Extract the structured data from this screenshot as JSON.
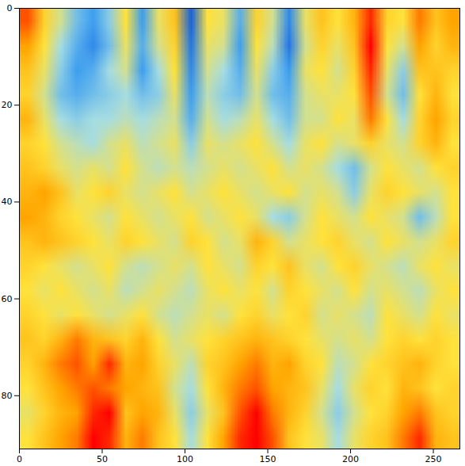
{
  "chart_data": {
    "type": "heatmap",
    "xlim": [
      0,
      266
    ],
    "xticks": [
      0,
      50,
      100,
      150,
      200,
      250
    ],
    "ylim": [
      91,
      0
    ],
    "yticks": [
      0,
      20,
      40,
      60,
      80
    ],
    "zlim": [
      -1,
      1
    ],
    "cells": [
      [
        0.8,
        0.3,
        0.0,
        -0.4,
        -0.6,
        -0.3,
        0.2,
        -0.6,
        0.1,
        0.4,
        -0.9,
        0.2,
        0.1,
        -0.5,
        0.3,
        0.0,
        -0.7,
        0.1,
        0.4,
        0.2,
        0.5,
        0.9,
        0.3,
        0.2,
        0.7,
        0.4,
        0.6
      ],
      [
        0.6,
        0.2,
        -0.2,
        -0.5,
        -0.7,
        -0.4,
        0.1,
        -0.5,
        0.0,
        0.3,
        -0.8,
        0.1,
        0.0,
        -0.6,
        0.2,
        -0.1,
        -0.8,
        0.0,
        0.3,
        0.1,
        0.4,
        1.0,
        0.2,
        0.0,
        0.6,
        0.3,
        0.5
      ],
      [
        0.4,
        0.1,
        -0.3,
        -0.6,
        -0.5,
        -0.2,
        0.0,
        -0.6,
        -0.2,
        0.2,
        -0.7,
        0.0,
        -0.2,
        -0.5,
        0.1,
        -0.3,
        -0.6,
        0.1,
        0.2,
        0.0,
        0.3,
        0.9,
        0.1,
        -0.3,
        0.4,
        0.4,
        0.3
      ],
      [
        0.3,
        0.0,
        -0.4,
        -0.5,
        -0.4,
        -0.3,
        -0.2,
        -0.4,
        -0.3,
        0.1,
        -0.6,
        -0.1,
        -0.3,
        -0.4,
        0.0,
        -0.4,
        -0.5,
        0.0,
        0.1,
        0.1,
        0.2,
        0.8,
        0.0,
        -0.4,
        0.2,
        0.5,
        0.2
      ],
      [
        0.5,
        0.1,
        -0.2,
        -0.3,
        -0.2,
        -0.2,
        -0.1,
        -0.2,
        -0.1,
        0.0,
        -0.5,
        0.0,
        -0.2,
        -0.1,
        0.1,
        -0.2,
        -0.4,
        0.0,
        0.0,
        0.2,
        0.1,
        0.7,
        0.2,
        -0.2,
        0.3,
        0.6,
        0.3
      ],
      [
        0.3,
        0.2,
        0.0,
        -0.1,
        -0.2,
        0.0,
        0.1,
        -0.1,
        0.0,
        0.1,
        -0.3,
        0.1,
        0.0,
        0.1,
        0.2,
        0.0,
        -0.2,
        0.1,
        0.2,
        0.0,
        0.1,
        0.3,
        0.1,
        0.0,
        0.3,
        0.5,
        0.2
      ],
      [
        0.4,
        0.3,
        0.1,
        0.0,
        0.1,
        0.0,
        0.2,
        0.0,
        -0.1,
        0.0,
        -0.1,
        0.0,
        0.1,
        0.0,
        0.1,
        0.2,
        0.0,
        0.1,
        0.0,
        -0.2,
        -0.4,
        0.0,
        0.2,
        0.1,
        0.0,
        0.2,
        0.3
      ],
      [
        0.5,
        0.6,
        0.4,
        0.1,
        0.2,
        0.3,
        0.1,
        0.0,
        0.1,
        0.2,
        0.0,
        0.1,
        0.2,
        0.1,
        0.0,
        0.1,
        0.2,
        0.0,
        0.1,
        0.0,
        -0.3,
        0.1,
        0.3,
        0.2,
        0.1,
        0.0,
        0.2
      ],
      [
        0.6,
        0.5,
        0.3,
        0.2,
        0.1,
        0.0,
        0.2,
        0.1,
        0.0,
        0.1,
        0.2,
        0.0,
        0.1,
        0.2,
        0.1,
        -0.2,
        -0.3,
        0.0,
        0.2,
        0.1,
        0.0,
        0.2,
        0.1,
        0.0,
        -0.4,
        -0.1,
        0.2
      ],
      [
        0.4,
        0.5,
        0.4,
        0.3,
        0.2,
        0.1,
        0.3,
        0.2,
        0.1,
        0.0,
        0.3,
        0.2,
        0.0,
        0.1,
        0.5,
        0.3,
        0.0,
        0.1,
        0.2,
        0.3,
        0.1,
        0.0,
        0.2,
        0.1,
        0.0,
        0.1,
        0.3
      ],
      [
        0.3,
        0.2,
        0.1,
        0.0,
        0.1,
        0.2,
        0.0,
        -0.1,
        0.0,
        0.1,
        0.0,
        0.2,
        0.1,
        0.0,
        0.3,
        0.2,
        0.4,
        0.1,
        0.0,
        0.2,
        0.3,
        0.1,
        0.0,
        -0.1,
        0.1,
        0.2,
        0.1
      ],
      [
        0.2,
        0.1,
        0.2,
        0.1,
        0.0,
        0.1,
        -0.1,
        0.0,
        0.1,
        0.0,
        -0.1,
        0.1,
        0.2,
        0.1,
        0.2,
        0.0,
        0.3,
        0.2,
        0.1,
        0.0,
        0.2,
        0.0,
        0.1,
        0.0,
        -0.1,
        0.1,
        0.2
      ],
      [
        0.3,
        0.2,
        0.1,
        0.2,
        0.1,
        0.0,
        0.1,
        0.2,
        0.0,
        -0.1,
        0.0,
        0.1,
        0.0,
        0.2,
        0.3,
        0.1,
        0.2,
        0.3,
        0.0,
        0.1,
        0.0,
        -0.1,
        0.2,
        0.1,
        0.0,
        0.2,
        0.1
      ],
      [
        0.4,
        0.3,
        0.5,
        0.7,
        0.5,
        0.4,
        0.3,
        0.5,
        0.2,
        0.0,
        0.1,
        0.2,
        0.3,
        0.4,
        0.5,
        0.4,
        0.3,
        0.2,
        0.1,
        0.0,
        0.1,
        0.0,
        0.2,
        0.3,
        0.2,
        0.3,
        0.2
      ],
      [
        0.3,
        0.5,
        0.7,
        0.8,
        0.6,
        0.9,
        0.5,
        0.6,
        0.3,
        0.1,
        -0.1,
        0.3,
        0.4,
        0.6,
        0.7,
        0.5,
        0.6,
        0.3,
        0.2,
        -0.1,
        0.0,
        0.2,
        0.3,
        0.4,
        0.5,
        0.3,
        0.2
      ],
      [
        0.2,
        0.4,
        0.6,
        0.7,
        0.8,
        0.7,
        0.6,
        0.5,
        0.4,
        0.0,
        -0.2,
        0.2,
        0.5,
        0.7,
        0.8,
        0.6,
        0.5,
        0.4,
        0.1,
        -0.2,
        0.1,
        0.3,
        0.2,
        0.5,
        0.4,
        0.2,
        0.3
      ],
      [
        0.1,
        0.3,
        0.5,
        0.6,
        0.9,
        1.0,
        0.4,
        0.6,
        0.5,
        0.1,
        -0.3,
        0.1,
        0.4,
        0.8,
        1.0,
        0.7,
        0.5,
        0.3,
        0.0,
        -0.3,
        0.0,
        0.2,
        0.3,
        0.6,
        0.7,
        0.4,
        0.3
      ],
      [
        0.2,
        0.4,
        0.6,
        0.7,
        1.0,
        0.9,
        0.5,
        0.7,
        0.4,
        0.2,
        -0.2,
        0.2,
        0.6,
        0.9,
        1.0,
        0.8,
        0.4,
        0.2,
        0.1,
        -0.2,
        0.1,
        0.3,
        0.4,
        0.7,
        0.9,
        0.5,
        0.4
      ]
    ]
  }
}
